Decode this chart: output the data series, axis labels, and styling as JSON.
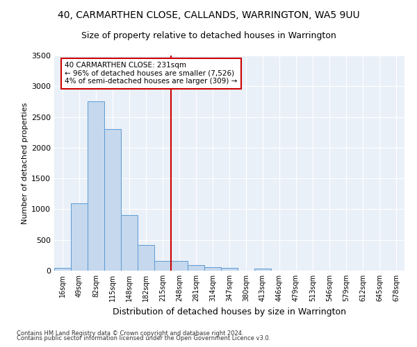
{
  "title": "40, CARMARTHEN CLOSE, CALLANDS, WARRINGTON, WA5 9UU",
  "subtitle": "Size of property relative to detached houses in Warrington",
  "xlabel": "Distribution of detached houses by size in Warrington",
  "ylabel": "Number of detached properties",
  "categories": [
    "16sqm",
    "49sqm",
    "82sqm",
    "115sqm",
    "148sqm",
    "182sqm",
    "215sqm",
    "248sqm",
    "281sqm",
    "314sqm",
    "347sqm",
    "380sqm",
    "413sqm",
    "446sqm",
    "479sqm",
    "513sqm",
    "546sqm",
    "579sqm",
    "612sqm",
    "645sqm",
    "678sqm"
  ],
  "values": [
    50,
    1090,
    2750,
    2300,
    900,
    420,
    160,
    155,
    90,
    55,
    45,
    0,
    30,
    0,
    0,
    0,
    0,
    0,
    0,
    0,
    0
  ],
  "bar_color": "#c5d8ed",
  "bar_edge_color": "#5b9bd5",
  "vline_x": 7.0,
  "vline_color": "#cc0000",
  "annotation_text": "40 CARMARTHEN CLOSE: 231sqm\n← 96% of detached houses are smaller (7,526)\n4% of semi-detached houses are larger (309) →",
  "annotation_box_color": "#ffffff",
  "annotation_box_edge": "#cc0000",
  "ylim": [
    0,
    3500
  ],
  "yticks": [
    0,
    500,
    1000,
    1500,
    2000,
    2500,
    3000,
    3500
  ],
  "plot_bg_color": "#eaf0f8",
  "footer1": "Contains HM Land Registry data © Crown copyright and database right 2024.",
  "footer2": "Contains public sector information licensed under the Open Government Licence v3.0.",
  "title_fontsize": 10,
  "subtitle_fontsize": 9,
  "ylabel_fontsize": 8,
  "xlabel_fontsize": 9
}
